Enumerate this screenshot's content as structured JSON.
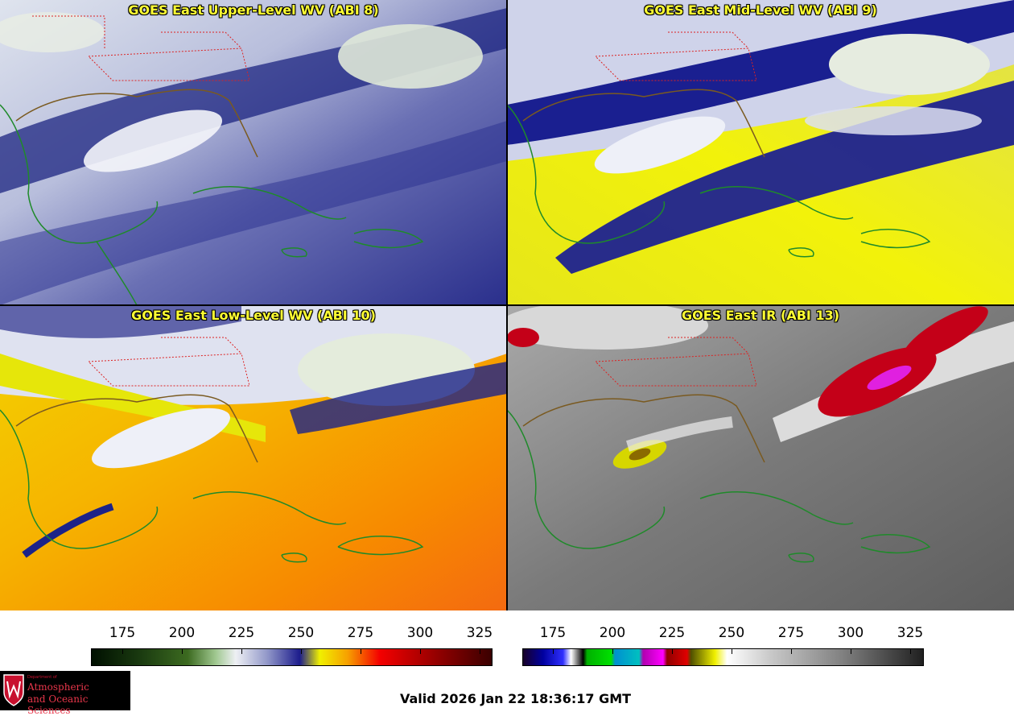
{
  "panels": [
    {
      "title": "GOES East Upper-Level WV (ABI 8)"
    },
    {
      "title": "GOES East Mid-Level WV (ABI 9)"
    },
    {
      "title": "GOES East Low-Level WV (ABI 10)"
    },
    {
      "title": "GOES East IR (ABI 13)"
    }
  ],
  "colorbars": {
    "wv": {
      "ticks": [
        "175",
        "200",
        "225",
        "250",
        "275",
        "300",
        "325"
      ]
    },
    "ir": {
      "ticks": [
        "175",
        "200",
        "225",
        "250",
        "275",
        "300",
        "325"
      ]
    }
  },
  "logo": {
    "small": "Department of",
    "line1": "Atmospheric",
    "line2": "and Oceanic Sciences"
  },
  "valid_time": "Valid 2026 Jan 22 18:36:17 GMT"
}
